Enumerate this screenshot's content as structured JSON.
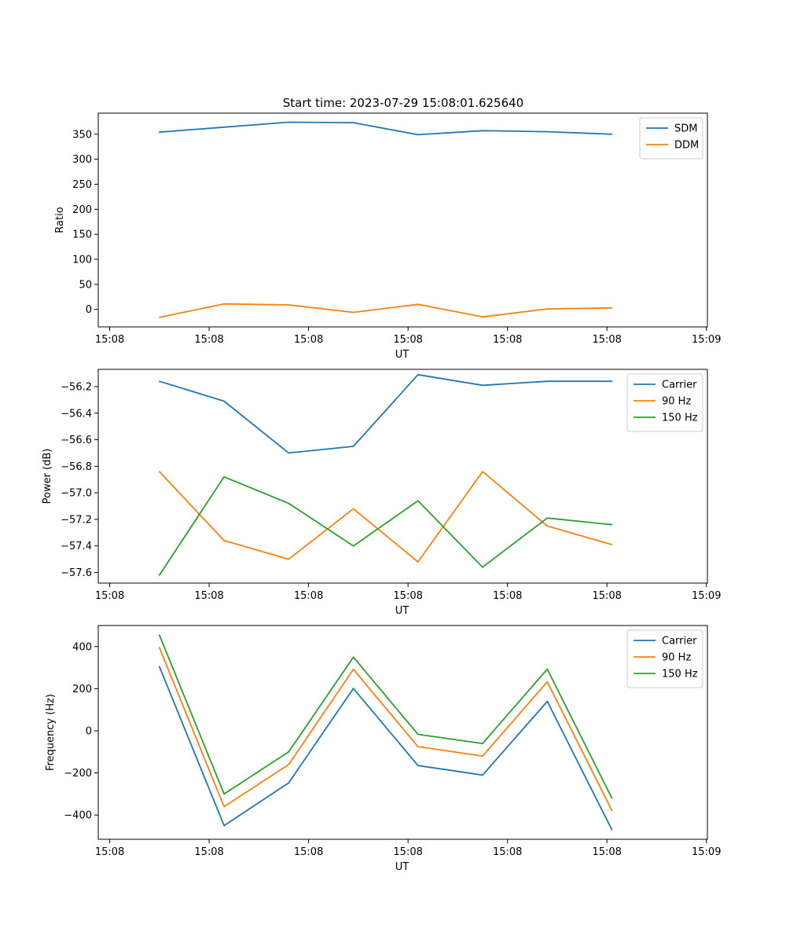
{
  "title": "Start time: 2023-07-29 15:08:01.625640",
  "colors": {
    "blue": "#1f77b4",
    "orange": "#ff7f0e",
    "green": "#2ca02c"
  },
  "chart_data": [
    {
      "type": "line",
      "ylabel": "Ratio",
      "xlabel": "UT",
      "x_tick_labels": [
        "15:08",
        "15:08",
        "15:08",
        "15:08",
        "15:08",
        "15:08",
        "15:09"
      ],
      "x_ticks": [
        -0.5,
        1.5,
        3.5,
        5.5,
        7.5,
        9.5,
        11.5
      ],
      "xlim": [
        -0.73,
        11.52
      ],
      "ylim": [
        -35,
        392
      ],
      "y_ticks": [
        0,
        50,
        100,
        150,
        200,
        250,
        300,
        350
      ],
      "y_tick_labels": [
        "0",
        "50",
        "100",
        "150",
        "200",
        "250",
        "300",
        "350"
      ],
      "legend_position": "top-right",
      "x": [
        0.5,
        1.8,
        3.1,
        4.4,
        5.7,
        7.0,
        8.3,
        9.6
      ],
      "series": [
        {
          "name": "SDM",
          "color": "#1f77b4",
          "values": [
            354,
            364,
            374,
            373,
            349,
            357,
            355,
            350
          ]
        },
        {
          "name": "DDM",
          "color": "#ff7f0e",
          "values": [
            -16,
            11,
            9,
            -6,
            10,
            -15,
            1,
            3
          ]
        }
      ]
    },
    {
      "type": "line",
      "ylabel": "Power (dB)",
      "xlabel": "UT",
      "x_tick_labels": [
        "15:08",
        "15:08",
        "15:08",
        "15:08",
        "15:08",
        "15:08",
        "15:09"
      ],
      "x_ticks": [
        -0.5,
        1.5,
        3.5,
        5.5,
        7.5,
        9.5,
        11.5
      ],
      "xlim": [
        -0.73,
        11.52
      ],
      "ylim": [
        -57.68,
        -56.07
      ],
      "y_ticks": [
        -57.6,
        -57.4,
        -57.2,
        -57.0,
        -56.8,
        -56.6,
        -56.4,
        -56.2
      ],
      "y_tick_labels": [
        "−57.6",
        "−57.4",
        "−57.2",
        "−57.0",
        "−56.8",
        "−56.6",
        "−56.4",
        "−56.2"
      ],
      "legend_position": "top-right",
      "x": [
        0.5,
        1.8,
        3.1,
        4.4,
        5.7,
        7.0,
        8.3,
        9.6
      ],
      "series": [
        {
          "name": "Carrier",
          "color": "#1f77b4",
          "values": [
            -56.16,
            -56.31,
            -56.7,
            -56.65,
            -56.11,
            -56.19,
            -56.16,
            -56.16
          ]
        },
        {
          "name": "90 Hz",
          "color": "#ff7f0e",
          "values": [
            -56.84,
            -57.36,
            -57.5,
            -57.12,
            -57.52,
            -56.84,
            -57.25,
            -57.39
          ]
        },
        {
          "name": "150 Hz",
          "color": "#2ca02c",
          "values": [
            -57.62,
            -56.88,
            -57.08,
            -57.4,
            -57.06,
            -57.56,
            -57.19,
            -57.24
          ]
        }
      ]
    },
    {
      "type": "line",
      "ylabel": "Frequency (Hz)",
      "xlabel": "UT",
      "x_tick_labels": [
        "15:08",
        "15:08",
        "15:08",
        "15:08",
        "15:08",
        "15:08",
        "15:09"
      ],
      "x_ticks": [
        -0.5,
        1.5,
        3.5,
        5.5,
        7.5,
        9.5,
        11.5
      ],
      "xlim": [
        -0.73,
        11.52
      ],
      "ylim": [
        -515,
        500
      ],
      "y_ticks": [
        -400,
        -200,
        0,
        200,
        400
      ],
      "y_tick_labels": [
        "−400",
        "−200",
        "0",
        "200",
        "400"
      ],
      "legend_position": "top-right",
      "x": [
        0.5,
        1.8,
        3.1,
        4.4,
        5.7,
        7.0,
        8.3,
        9.6
      ],
      "series": [
        {
          "name": "Carrier",
          "color": "#1f77b4",
          "values": [
            305,
            -450,
            -247,
            201,
            -165,
            -210,
            140,
            -470
          ]
        },
        {
          "name": "90 Hz",
          "color": "#ff7f0e",
          "values": [
            395,
            -360,
            -160,
            292,
            -75,
            -120,
            233,
            -378
          ]
        },
        {
          "name": "150 Hz",
          "color": "#2ca02c",
          "values": [
            455,
            -300,
            -100,
            350,
            -17,
            -60,
            293,
            -320
          ]
        }
      ]
    }
  ]
}
